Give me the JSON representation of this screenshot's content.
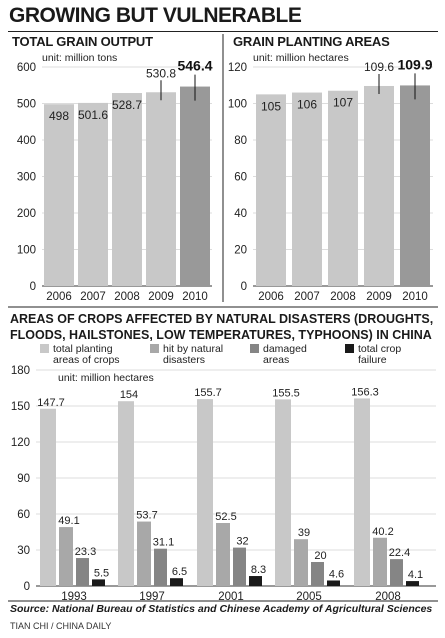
{
  "title": "GROWING BUT VULNERABLE",
  "chart_data": [
    {
      "type": "bar",
      "title": "TOTAL GRAIN OUTPUT",
      "unit": "unit: million tons",
      "categories": [
        "2006",
        "2007",
        "2008",
        "2009",
        "2010"
      ],
      "values": [
        498,
        501.6,
        528.7,
        530.8,
        546.4
      ],
      "value_labels": [
        "498",
        "501.6",
        "528.7",
        "530.8",
        "546.4"
      ],
      "yticks": [
        "0",
        "100",
        "200",
        "300",
        "400",
        "500",
        "600"
      ],
      "ylim": [
        0,
        600
      ],
      "highlight_index": 4,
      "colors": {
        "bar": "#c8c8c8",
        "highlight": "#999999"
      }
    },
    {
      "type": "bar",
      "title": "GRAIN PLANTING AREAS",
      "unit": "unit: million hectares",
      "categories": [
        "2006",
        "2007",
        "2008",
        "2009",
        "2010"
      ],
      "values": [
        105,
        106,
        107,
        109.6,
        109.9
      ],
      "value_labels": [
        "105",
        "106",
        "107",
        "109.6",
        "109.9"
      ],
      "yticks": [
        "0",
        "20",
        "40",
        "60",
        "80",
        "100",
        "120"
      ],
      "ylim": [
        0,
        120
      ],
      "highlight_index": 4,
      "colors": {
        "bar": "#c8c8c8",
        "highlight": "#999999"
      }
    },
    {
      "type": "bar",
      "title": "AREAS OF CROPS AFFECTED BY NATURAL DISASTERS (DROUGHTS, FLOODS, HAILSTONES, LOW TEMPERATURES, TYPHOONS) IN CHINA",
      "unit": "unit: million hectares",
      "categories": [
        "1993",
        "1997",
        "2001",
        "2005",
        "2008"
      ],
      "series": [
        {
          "name": "total planting areas of crops",
          "legend_lines": [
            "total planting",
            "areas of crops"
          ],
          "color": "#c8c8c8",
          "values": [
            147.7,
            154,
            155.7,
            155.5,
            156.3
          ],
          "labels": [
            "147.7",
            "154",
            "155.7",
            "155.5",
            "156.3"
          ]
        },
        {
          "name": "hit by natural disasters",
          "legend_lines": [
            "hit by natural",
            "disasters"
          ],
          "color": "#a8a8a8",
          "values": [
            49.1,
            53.7,
            52.5,
            39,
            40.2
          ],
          "labels": [
            "49.1",
            "53.7",
            "52.5",
            "39",
            "40.2"
          ]
        },
        {
          "name": "damaged areas",
          "legend_lines": [
            "damaged",
            "areas"
          ],
          "color": "#858585",
          "values": [
            23.3,
            31.1,
            32,
            20,
            22.4
          ],
          "labels": [
            "23.3",
            "31.1",
            "32",
            "20",
            "22.4"
          ]
        },
        {
          "name": "total crop failure",
          "legend_lines": [
            "total crop",
            "failure"
          ],
          "color": "#1a1a1a",
          "values": [
            5.5,
            6.5,
            8.3,
            4.6,
            4.1
          ],
          "labels": [
            "5.5",
            "6.5",
            "8.3",
            "4.6",
            "4.1"
          ]
        }
      ],
      "yticks": [
        "0",
        "30",
        "60",
        "90",
        "120",
        "150",
        "180"
      ],
      "ylim": [
        0,
        180
      ],
      "legend": "top"
    }
  ],
  "source": "Source: National Bureau of Statistics and Chinese Academy of Agricultural Sciences",
  "credit": "TIAN CHI / CHINA DAILY"
}
